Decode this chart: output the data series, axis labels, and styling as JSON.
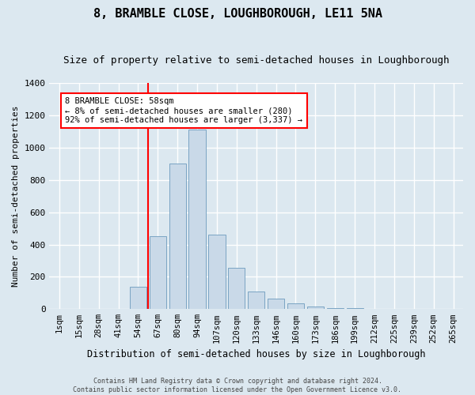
{
  "title": "8, BRAMBLE CLOSE, LOUGHBOROUGH, LE11 5NA",
  "subtitle": "Size of property relative to semi-detached houses in Loughborough",
  "xlabel": "Distribution of semi-detached houses by size in Loughborough",
  "ylabel": "Number of semi-detached properties",
  "footnote": "Contains HM Land Registry data © Crown copyright and database right 2024.\nContains public sector information licensed under the Open Government Licence v3.0.",
  "categories": [
    "1sqm",
    "15sqm",
    "28sqm",
    "41sqm",
    "54sqm",
    "67sqm",
    "80sqm",
    "94sqm",
    "107sqm",
    "120sqm",
    "133sqm",
    "146sqm",
    "160sqm",
    "173sqm",
    "186sqm",
    "199sqm",
    "212sqm",
    "225sqm",
    "239sqm",
    "252sqm",
    "265sqm"
  ],
  "values": [
    0,
    0,
    0,
    0,
    140,
    450,
    900,
    1110,
    460,
    255,
    110,
    65,
    35,
    15,
    8,
    4,
    2,
    1,
    0,
    0,
    0
  ],
  "bar_color": "#c9d9e8",
  "bar_edge_color": "#7aa4c3",
  "vline_x_index": 4.5,
  "vline_color": "red",
  "annotation_text": "8 BRAMBLE CLOSE: 58sqm\n← 8% of semi-detached houses are smaller (280)\n92% of semi-detached houses are larger (3,337) →",
  "annotation_box_color": "white",
  "annotation_box_edge_color": "red",
  "ylim": [
    0,
    1400
  ],
  "yticks": [
    0,
    200,
    400,
    600,
    800,
    1000,
    1200,
    1400
  ],
  "background_color": "#dce8f0",
  "plot_bg_color": "#dce8f0",
  "title_fontsize": 11,
  "subtitle_fontsize": 9,
  "property_size": 58
}
